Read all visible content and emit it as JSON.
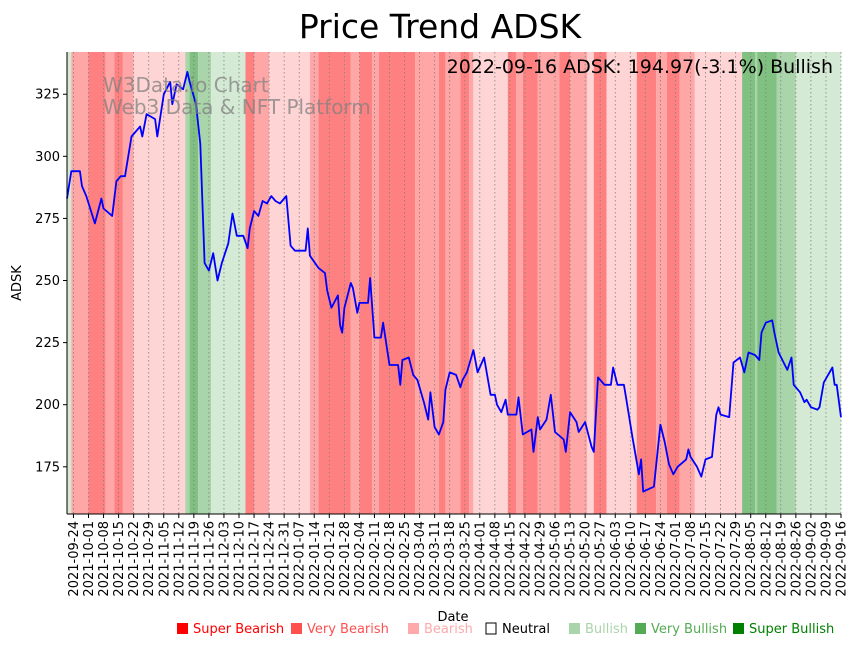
{
  "chart_data": {
    "type": "line",
    "title": "Price Trend ADSK",
    "xlabel": "Date",
    "ylabel": "ADSK",
    "annotation": "2022-09-16 ADSK: 194.97(-3.1%) Bullish",
    "watermark": [
      "W3Data.io Chart",
      "Web3 Data & NFT Platform"
    ],
    "x_origin_date": "2021-09-21",
    "x_unit": "days since x_origin_date",
    "xlim": [
      0,
      360
    ],
    "ylim": [
      156,
      342
    ],
    "yticks": [
      175,
      200,
      225,
      250,
      275,
      300,
      325
    ],
    "grid": "vertical dotted at x ticks",
    "xtick_first_day": 3,
    "xtick_step_days": 7,
    "xtick_labels": [
      "2021-09-24",
      "2021-10-01",
      "2021-10-08",
      "2021-10-15",
      "2021-10-22",
      "2021-10-29",
      "2021-11-05",
      "2021-11-12",
      "2021-11-19",
      "2021-11-26",
      "2021-12-03",
      "2021-12-10",
      "2021-12-17",
      "2021-12-24",
      "2021-12-31",
      "2022-01-07",
      "2022-01-14",
      "2022-01-21",
      "2022-01-28",
      "2022-02-04",
      "2022-02-11",
      "2022-02-18",
      "2022-02-25",
      "2022-03-04",
      "2022-03-11",
      "2022-03-18",
      "2022-03-25",
      "2022-04-01",
      "2022-04-08",
      "2022-04-15",
      "2022-04-22",
      "2022-04-29",
      "2022-05-06",
      "2022-05-13",
      "2022-05-20",
      "2022-05-27",
      "2022-06-03",
      "2022-06-10",
      "2022-06-17",
      "2022-06-24",
      "2022-07-01",
      "2022-07-08",
      "2022-07-15",
      "2022-07-22",
      "2022-07-29",
      "2022-08-05",
      "2022-08-12",
      "2022-08-19",
      "2022-08-26",
      "2022-09-02",
      "2022-09-09",
      "2022-09-16"
    ],
    "series": [
      {
        "name": "ADSK",
        "color": "#0000ff",
        "points": [
          [
            0,
            283
          ],
          [
            2,
            294
          ],
          [
            6,
            294
          ],
          [
            7,
            288
          ],
          [
            9,
            284
          ],
          [
            13,
            273
          ],
          [
            16,
            283
          ],
          [
            17,
            279
          ],
          [
            21,
            276
          ],
          [
            23,
            290
          ],
          [
            25,
            292
          ],
          [
            27,
            292
          ],
          [
            30,
            308
          ],
          [
            34,
            312
          ],
          [
            35,
            308
          ],
          [
            37,
            317
          ],
          [
            41,
            315
          ],
          [
            42,
            308
          ],
          [
            45,
            325
          ],
          [
            48,
            330
          ],
          [
            49,
            321
          ],
          [
            51,
            329
          ],
          [
            54,
            327
          ],
          [
            56,
            334
          ],
          [
            57,
            330
          ],
          [
            60,
            321
          ],
          [
            62,
            305
          ],
          [
            64,
            257
          ],
          [
            66,
            254
          ],
          [
            68,
            261
          ],
          [
            70,
            250
          ],
          [
            72,
            257
          ],
          [
            75,
            265
          ],
          [
            77,
            277
          ],
          [
            79,
            268
          ],
          [
            82,
            268
          ],
          [
            84,
            263
          ],
          [
            85,
            271
          ],
          [
            87,
            278
          ],
          [
            89,
            276
          ],
          [
            91,
            282
          ],
          [
            93,
            281
          ],
          [
            95,
            284
          ],
          [
            97,
            282
          ],
          [
            99,
            281
          ],
          [
            102,
            284
          ],
          [
            104,
            264
          ],
          [
            106,
            262
          ],
          [
            111,
            262
          ],
          [
            112,
            271
          ],
          [
            113,
            260
          ],
          [
            117,
            255
          ],
          [
            120,
            253
          ],
          [
            121,
            246
          ],
          [
            123,
            239
          ],
          [
            126,
            244
          ],
          [
            127,
            232
          ],
          [
            128,
            229
          ],
          [
            129,
            239
          ],
          [
            132,
            249
          ],
          [
            133,
            247
          ],
          [
            135,
            237
          ],
          [
            136,
            241
          ],
          [
            140,
            241
          ],
          [
            141,
            251
          ],
          [
            143,
            227
          ],
          [
            146,
            227
          ],
          [
            147,
            233
          ],
          [
            150,
            216
          ],
          [
            154,
            216
          ],
          [
            155,
            208
          ],
          [
            156,
            218
          ],
          [
            159,
            219
          ],
          [
            161,
            212
          ],
          [
            163,
            210
          ],
          [
            166,
            201
          ],
          [
            168,
            194
          ],
          [
            169,
            205
          ],
          [
            171,
            191
          ],
          [
            173,
            188
          ],
          [
            175,
            193
          ],
          [
            176,
            206
          ],
          [
            178,
            213
          ],
          [
            181,
            212
          ],
          [
            183,
            207
          ],
          [
            184,
            210
          ],
          [
            186,
            213
          ],
          [
            189,
            222
          ],
          [
            191,
            213
          ],
          [
            194,
            219
          ],
          [
            197,
            204
          ],
          [
            199,
            204
          ],
          [
            200,
            200
          ],
          [
            202,
            197
          ],
          [
            204,
            202
          ],
          [
            205,
            196
          ],
          [
            209,
            196
          ],
          [
            210,
            203
          ],
          [
            212,
            188
          ],
          [
            216,
            190
          ],
          [
            217,
            181
          ],
          [
            219,
            195
          ],
          [
            220,
            190
          ],
          [
            223,
            194
          ],
          [
            225,
            204
          ],
          [
            227,
            189
          ],
          [
            231,
            186
          ],
          [
            232,
            181
          ],
          [
            234,
            197
          ],
          [
            237,
            193
          ],
          [
            238,
            189
          ],
          [
            241,
            193
          ],
          [
            244,
            183
          ],
          [
            245,
            181
          ],
          [
            247,
            211
          ],
          [
            250,
            208
          ],
          [
            253,
            208
          ],
          [
            254,
            215
          ],
          [
            256,
            208
          ],
          [
            259,
            208
          ],
          [
            260,
            203
          ],
          [
            263,
            187
          ],
          [
            266,
            172
          ],
          [
            267,
            178
          ],
          [
            268,
            165
          ],
          [
            273,
            167
          ],
          [
            276,
            192
          ],
          [
            278,
            185
          ],
          [
            280,
            176
          ],
          [
            282,
            172
          ],
          [
            284,
            175
          ],
          [
            288,
            178
          ],
          [
            289,
            182
          ],
          [
            290,
            179
          ],
          [
            293,
            175
          ],
          [
            295,
            171
          ],
          [
            297,
            178
          ],
          [
            300,
            179
          ],
          [
            302,
            196
          ],
          [
            303,
            199
          ],
          [
            304,
            196
          ],
          [
            308,
            195
          ],
          [
            310,
            217
          ],
          [
            313,
            219
          ],
          [
            315,
            213
          ],
          [
            317,
            221
          ],
          [
            320,
            220
          ],
          [
            322,
            218
          ],
          [
            323,
            229
          ],
          [
            325,
            233
          ],
          [
            328,
            234
          ],
          [
            329,
            229
          ],
          [
            331,
            221
          ],
          [
            335,
            214
          ],
          [
            337,
            219
          ],
          [
            338,
            208
          ],
          [
            341,
            205
          ],
          [
            343,
            201
          ],
          [
            344,
            202
          ],
          [
            346,
            199
          ],
          [
            349,
            198
          ],
          [
            350,
            199
          ],
          [
            352,
            209
          ],
          [
            356,
            215
          ],
          [
            357,
            208
          ],
          [
            358,
            208
          ],
          [
            360,
            194.97
          ]
        ]
      }
    ],
    "sentiment_bands": [
      [
        0,
        2,
        "Bullish"
      ],
      [
        2,
        10,
        "Very Bearish"
      ],
      [
        10,
        18,
        "Super Bearish"
      ],
      [
        18,
        22,
        "Very Bearish"
      ],
      [
        22,
        26,
        "Super Bearish"
      ],
      [
        26,
        31,
        "Very Bearish"
      ],
      [
        31,
        55,
        "Bearish"
      ],
      [
        55,
        57,
        "Very Bullish"
      ],
      [
        57,
        61,
        "Super Bullish"
      ],
      [
        61,
        67,
        "Very Bullish"
      ],
      [
        67,
        83,
        "Bullish"
      ],
      [
        83,
        87,
        "Super Bearish"
      ],
      [
        87,
        94,
        "Very Bearish"
      ],
      [
        94,
        113,
        "Bearish"
      ],
      [
        113,
        117,
        "Very Bearish"
      ],
      [
        117,
        132,
        "Super Bearish"
      ],
      [
        132,
        136,
        "Very Bearish"
      ],
      [
        136,
        142,
        "Super Bearish"
      ],
      [
        142,
        145,
        "Very Bearish"
      ],
      [
        145,
        162,
        "Super Bearish"
      ],
      [
        162,
        173,
        "Very Bearish"
      ],
      [
        173,
        176,
        "Super Bearish"
      ],
      [
        176,
        183,
        "Very Bearish"
      ],
      [
        183,
        187,
        "Super Bearish"
      ],
      [
        187,
        189,
        "Very Bearish"
      ],
      [
        189,
        205,
        "Bearish"
      ],
      [
        205,
        209,
        "Super Bearish"
      ],
      [
        209,
        212,
        "Very Bearish"
      ],
      [
        212,
        219,
        "Super Bearish"
      ],
      [
        219,
        229,
        "Very Bearish"
      ],
      [
        229,
        234,
        "Super Bearish"
      ],
      [
        234,
        242,
        "Very Bearish"
      ],
      [
        242,
        245,
        "Bearish"
      ],
      [
        245,
        251,
        "Super Bearish"
      ],
      [
        251,
        265,
        "Bearish"
      ],
      [
        265,
        274,
        "Super Bearish"
      ],
      [
        274,
        279,
        "Very Bearish"
      ],
      [
        279,
        285,
        "Super Bearish"
      ],
      [
        285,
        292,
        "Very Bearish"
      ],
      [
        292,
        314,
        "Bearish"
      ],
      [
        314,
        320,
        "Super Bullish"
      ],
      [
        320,
        321,
        "Very Bullish"
      ],
      [
        321,
        330,
        "Super Bullish"
      ],
      [
        330,
        339,
        "Very Bullish"
      ],
      [
        339,
        360,
        "Bullish"
      ]
    ],
    "legend": [
      {
        "label": "Super Bearish",
        "color": "#ff0000",
        "band": "#ff8080"
      },
      {
        "label": "Very Bearish",
        "color": "#ff5050",
        "band": "#ffa6a6"
      },
      {
        "label": "Bearish",
        "color": "#ffaaaa",
        "band": "#ffd4d4"
      },
      {
        "label": "Neutral",
        "color": "#000000",
        "band": "#ffffff"
      },
      {
        "label": "Bullish",
        "color": "#aad4aa",
        "band": "#d4ead4"
      },
      {
        "label": "Very Bullish",
        "color": "#55aa55",
        "band": "#aad4aa"
      },
      {
        "label": "Super Bullish",
        "color": "#008000",
        "band": "#80c080"
      }
    ],
    "legend_placement": "bottom-right"
  }
}
